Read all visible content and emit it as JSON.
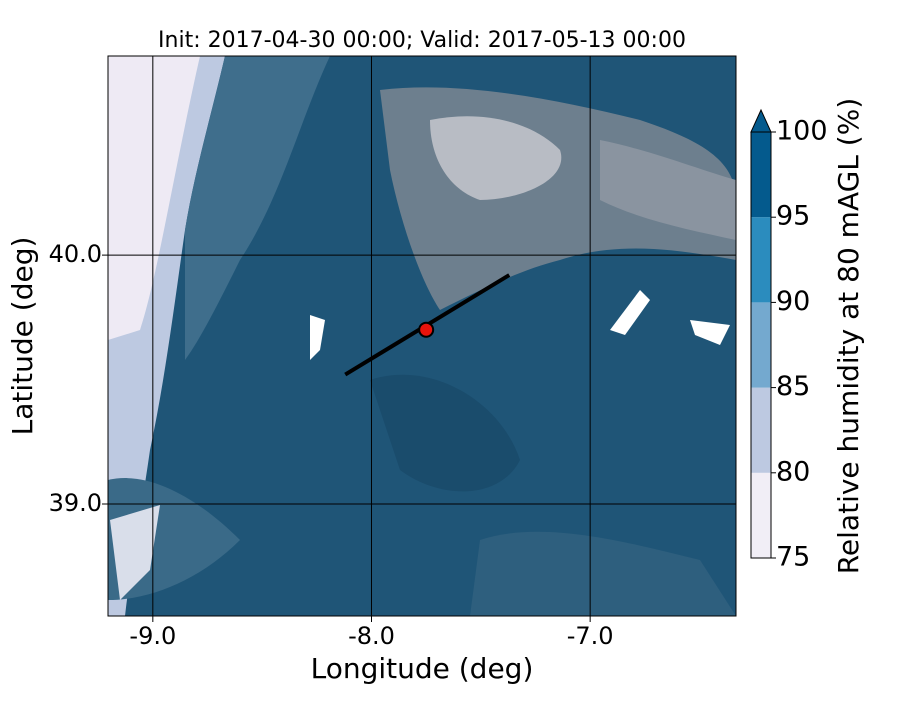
{
  "chart_data": {
    "type": "contour",
    "title": "Init: 2017-04-30 00:00; Valid: 2017-05-13 00:00",
    "xlabel": "Longitude (deg)",
    "ylabel": "Latitude (deg)",
    "xlim": [
      -9.205,
      -6.333
    ],
    "ylim": [
      38.55,
      40.8
    ],
    "xticks": [
      {
        "value": -9,
        "label": "-9.0"
      },
      {
        "value": -8,
        "label": "-8.0"
      },
      {
        "value": -7,
        "label": "-7.0"
      }
    ],
    "yticks": [
      {
        "value": 39,
        "label": "39.0"
      },
      {
        "value": 40,
        "label": "40.0"
      }
    ],
    "grid": true,
    "transect": {
      "lon": [
        -8.12,
        -7.37
      ],
      "lat": [
        39.52,
        39.92
      ],
      "color": "#000000"
    },
    "point": {
      "lon": -7.75,
      "lat": 39.7,
      "color": "#e8130c"
    },
    "colorbar": {
      "label": "Relative humidity at 80 mAGL (%)",
      "levels": [
        75,
        80,
        85,
        90,
        95,
        100
      ],
      "colors": [
        "#f1eef6",
        "#bdc9e1",
        "#74a9cf",
        "#2b8cbe",
        "#045a8d"
      ],
      "ticks": [
        75,
        80,
        85,
        90,
        95,
        100
      ],
      "extend": "max"
    }
  }
}
